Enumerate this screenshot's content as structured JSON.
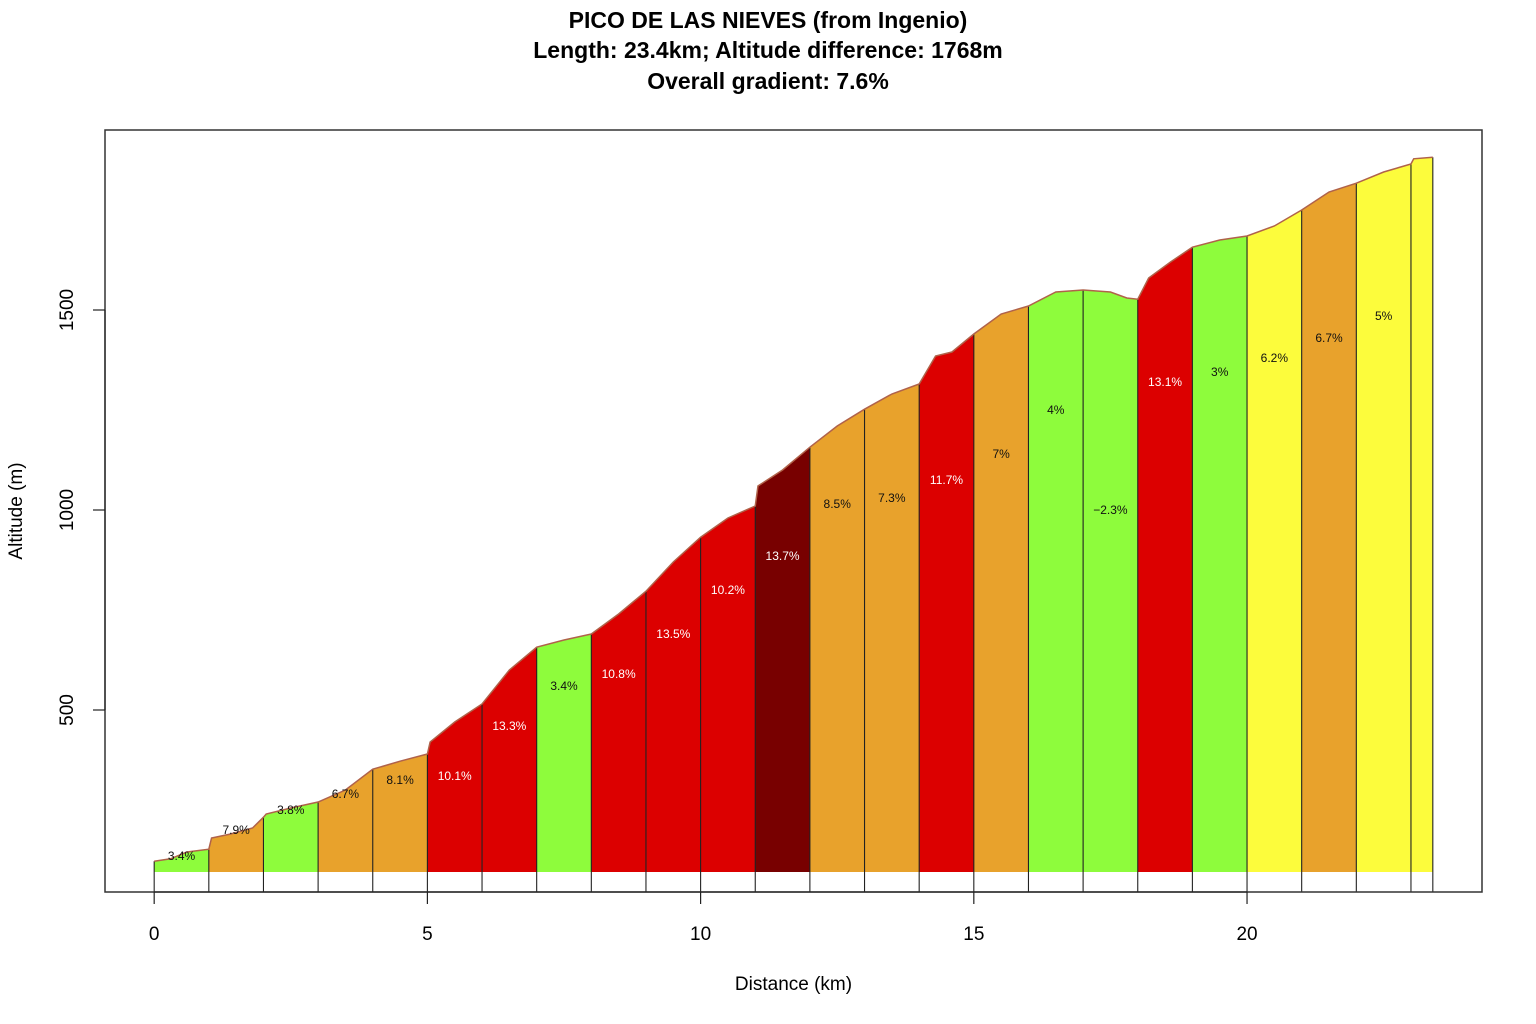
{
  "title": {
    "line1": "PICO DE LAS NIEVES (from Ingenio)",
    "line2": "Length: 23.4km; Altitude difference: 1768m",
    "line3": "Overall gradient: 7.6%"
  },
  "colors": {
    "green": "#8efc3c",
    "yellow": "#fcfc3c",
    "orange": "#e8a22c",
    "red": "#dc0000",
    "darkred": "#780000",
    "profile_line": "#b0624a"
  },
  "chart_data": {
    "type": "area",
    "title": "PICO DE LAS NIEVES (from Ingenio)",
    "subtitle": "Length: 23.4km; Altitude difference: 1768m; Overall gradient: 7.6%",
    "xlabel": "Distance (km)",
    "ylabel": "Altitude (m)",
    "xlim": [
      -0.9,
      24.3
    ],
    "ylim": [
      45,
      1950
    ],
    "xticks": [
      0,
      5,
      10,
      15,
      20
    ],
    "yticks": [
      500,
      1000,
      1500
    ],
    "baseline": 95,
    "grid": false,
    "profile": {
      "x": [
        0,
        0.3,
        0.6,
        1.0,
        1.05,
        1.4,
        1.8,
        2.0,
        2.05,
        2.5,
        3.0,
        3.5,
        4.0,
        4.5,
        5.0,
        5.05,
        5.5,
        6.0,
        6.5,
        7.0,
        7.5,
        8.0,
        8.5,
        9.0,
        9.5,
        10.0,
        10.5,
        11.0,
        11.05,
        11.5,
        12.0,
        12.5,
        13.0,
        13.5,
        14.0,
        14.3,
        14.6,
        15.0,
        15.5,
        16.0,
        16.5,
        17.0,
        17.5,
        17.8,
        18.0,
        18.2,
        18.6,
        19.0,
        19.5,
        20.0,
        20.5,
        21.0,
        21.5,
        22.0,
        22.5,
        23.0,
        23.05,
        23.4
      ],
      "y": [
        122,
        128,
        145,
        152,
        180,
        190,
        205,
        232,
        240,
        255,
        270,
        300,
        352,
        372,
        390,
        420,
        470,
        515,
        600,
        657,
        675,
        690,
        740,
        797,
        870,
        932,
        980,
        1010,
        1060,
        1100,
        1157,
        1210,
        1252,
        1290,
        1315,
        1385,
        1395,
        1440,
        1490,
        1510,
        1545,
        1550,
        1545,
        1530,
        1527,
        1580,
        1620,
        1657,
        1675,
        1685,
        1710,
        1750,
        1795,
        1817,
        1845,
        1865,
        1878,
        1882
      ]
    },
    "segments": [
      {
        "start": 0,
        "end": 1,
        "gradient": "3.4%",
        "color": "green"
      },
      {
        "start": 1,
        "end": 2,
        "gradient": "7.9%",
        "color": "orange"
      },
      {
        "start": 2,
        "end": 3,
        "gradient": "3.8%",
        "color": "green"
      },
      {
        "start": 3,
        "end": 4,
        "gradient": "6.7%",
        "color": "orange"
      },
      {
        "start": 4,
        "end": 5,
        "gradient": "8.1%",
        "color": "orange"
      },
      {
        "start": 5,
        "end": 6,
        "gradient": "10.1%",
        "color": "red"
      },
      {
        "start": 6,
        "end": 7,
        "gradient": "13.3%",
        "color": "red"
      },
      {
        "start": 7,
        "end": 8,
        "gradient": "3.4%",
        "color": "green"
      },
      {
        "start": 8,
        "end": 9,
        "gradient": "10.8%",
        "color": "red"
      },
      {
        "start": 9,
        "end": 10,
        "gradient": "13.5%",
        "color": "red"
      },
      {
        "start": 10,
        "end": 11,
        "gradient": "10.2%",
        "color": "red"
      },
      {
        "start": 11,
        "end": 12,
        "gradient": "13.7%",
        "color": "darkred"
      },
      {
        "start": 12,
        "end": 13,
        "gradient": "8.5%",
        "color": "orange"
      },
      {
        "start": 13,
        "end": 14,
        "gradient": "7.3%",
        "color": "orange"
      },
      {
        "start": 14,
        "end": 15,
        "gradient": "11.7%",
        "color": "red"
      },
      {
        "start": 15,
        "end": 16,
        "gradient": "7%",
        "color": "orange"
      },
      {
        "start": 16,
        "end": 17,
        "gradient": "4%",
        "color": "green"
      },
      {
        "start": 17,
        "end": 18,
        "gradient": "−2.3%",
        "color": "green"
      },
      {
        "start": 18,
        "end": 19,
        "gradient": "13.1%",
        "color": "red"
      },
      {
        "start": 19,
        "end": 20,
        "gradient": "3%",
        "color": "green"
      },
      {
        "start": 20,
        "end": 21,
        "gradient": "6.2%",
        "color": "yellow"
      },
      {
        "start": 21,
        "end": 22,
        "gradient": "6.7%",
        "color": "orange"
      },
      {
        "start": 22,
        "end": 23,
        "gradient": "5%",
        "color": "yellow"
      },
      {
        "start": 23,
        "end": 23.4,
        "gradient": "",
        "color": "yellow"
      }
    ],
    "label_altitudes": [
      135,
      200,
      250,
      290,
      325,
      335,
      460,
      560,
      590,
      690,
      800,
      885,
      1015,
      1030,
      1075,
      1140,
      1250,
      1000,
      1320,
      1345,
      1380,
      1430,
      1485,
      1000
    ]
  }
}
